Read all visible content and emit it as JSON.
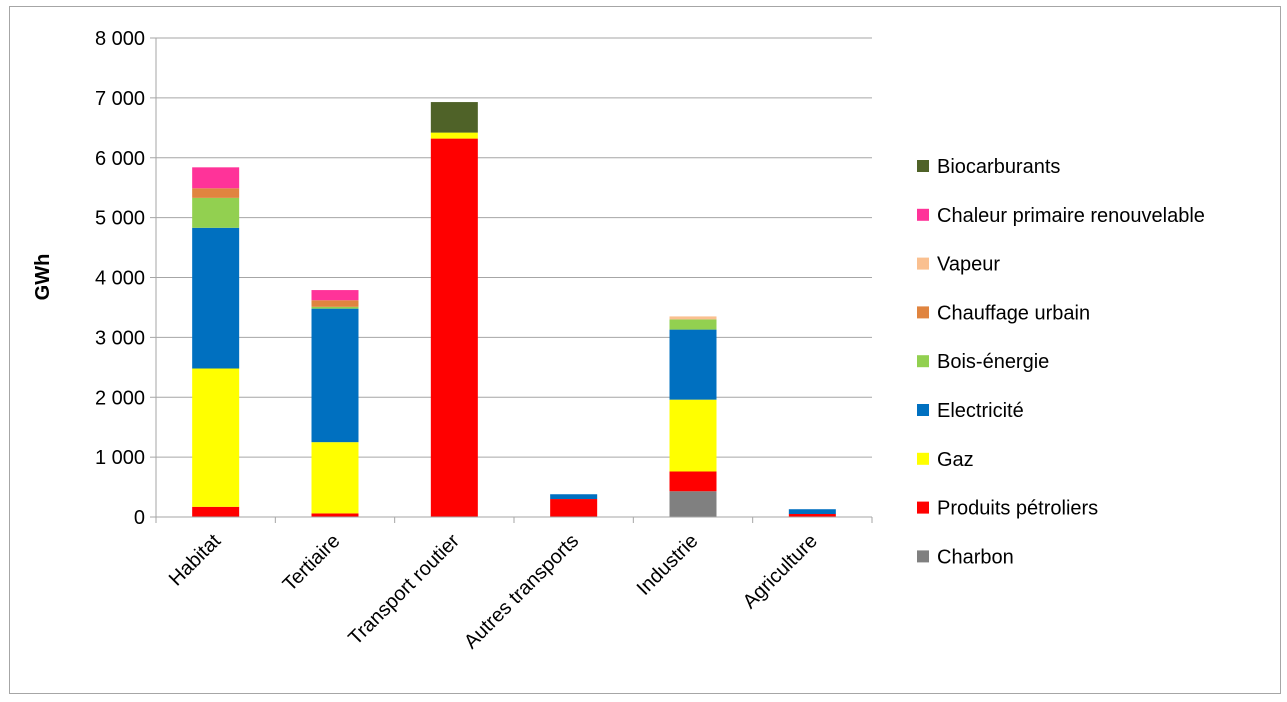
{
  "chart_data": {
    "type": "bar",
    "stacked": true,
    "title": "",
    "xlabel": "",
    "ylabel": "GWh",
    "ylim": [
      0,
      8000
    ],
    "y_ticks": [
      0,
      1000,
      2000,
      3000,
      4000,
      5000,
      6000,
      7000,
      8000
    ],
    "y_tick_labels": [
      "0",
      "1 000",
      "2 000",
      "3 000",
      "4 000",
      "5 000",
      "6 000",
      "7 000",
      "8 000"
    ],
    "grid": true,
    "legend_position": "right",
    "categories": [
      "Habitat",
      "Tertiaire",
      "Transport routier",
      "Autres transports",
      "Industrie",
      "Agriculture"
    ],
    "series": [
      {
        "name": "Charbon",
        "color": "#808080",
        "values": [
          0,
          0,
          0,
          0,
          430,
          0
        ]
      },
      {
        "name": "Produits pétroliers",
        "color": "#ff0000",
        "values": [
          170,
          60,
          6320,
          300,
          330,
          50
        ]
      },
      {
        "name": "Gaz",
        "color": "#ffff00",
        "values": [
          2310,
          1190,
          100,
          0,
          1200,
          0
        ]
      },
      {
        "name": "Electricité",
        "color": "#0070c0",
        "values": [
          2350,
          2230,
          0,
          80,
          1170,
          80
        ]
      },
      {
        "name": "Bois-énergie",
        "color": "#92d050",
        "values": [
          500,
          30,
          0,
          0,
          170,
          0
        ]
      },
      {
        "name": "Chauffage urbain",
        "color": "#e0843f",
        "values": [
          160,
          110,
          0,
          0,
          0,
          0
        ]
      },
      {
        "name": "Vapeur",
        "color": "#fac090",
        "values": [
          0,
          0,
          0,
          0,
          50,
          0
        ]
      },
      {
        "name": "Chaleur primaire renouvelable",
        "color": "#ff3399",
        "values": [
          350,
          170,
          0,
          0,
          0,
          0
        ]
      },
      {
        "name": "Biocarburants",
        "color": "#4f6228",
        "values": [
          0,
          0,
          510,
          0,
          0,
          0
        ]
      }
    ]
  }
}
